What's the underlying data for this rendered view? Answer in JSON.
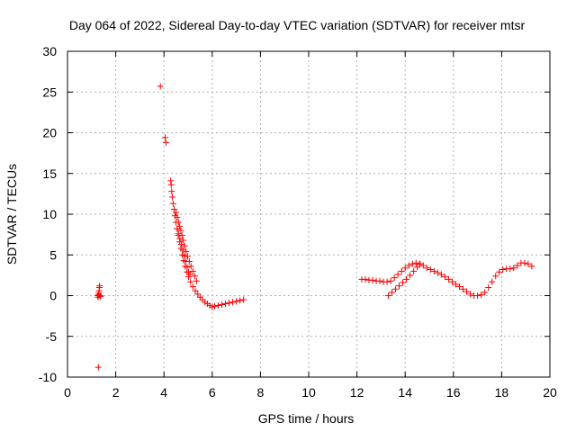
{
  "chart_data": {
    "type": "scatter",
    "title": "Day 064 of 2022, Sidereal Day-to-day VTEC variation (SDTVAR) for receiver mtsr",
    "xlabel": "GPS time / hours",
    "ylabel": "SDTVAR / TECUs",
    "xlim": [
      0,
      20
    ],
    "ylim": [
      -10,
      30
    ],
    "xticks": [
      0,
      2,
      4,
      6,
      8,
      10,
      12,
      14,
      16,
      18,
      20
    ],
    "yticks": [
      -10,
      -5,
      0,
      5,
      10,
      15,
      20,
      25,
      30
    ],
    "grid": true,
    "marker": "+",
    "color": "#ff0000",
    "series": [
      {
        "name": "SDTVAR",
        "segments": [
          [
            [
              1.25,
              0.0
            ],
            [
              1.27,
              -0.2
            ],
            [
              1.29,
              0.1
            ],
            [
              1.3,
              0.3
            ],
            [
              1.31,
              0.6
            ],
            [
              1.32,
              1.0
            ],
            [
              1.33,
              1.2
            ],
            [
              1.35,
              0.0
            ],
            [
              1.37,
              -0.1
            ]
          ],
          [
            [
              1.28,
              -8.8
            ]
          ],
          [
            [
              3.85,
              25.7
            ],
            [
              4.05,
              19.4
            ],
            [
              4.08,
              18.8
            ]
          ],
          [
            [
              4.28,
              14.1
            ],
            [
              4.3,
              13.6
            ],
            [
              4.32,
              12.8
            ],
            [
              4.35,
              12.1
            ],
            [
              4.38,
              11.3
            ],
            [
              4.42,
              10.6
            ],
            [
              4.46,
              9.8
            ],
            [
              4.5,
              9.0
            ],
            [
              4.55,
              8.2
            ],
            [
              4.6,
              7.4
            ],
            [
              4.65,
              6.6
            ],
            [
              4.7,
              5.8
            ],
            [
              4.76,
              5.0
            ],
            [
              4.82,
              4.3
            ],
            [
              4.88,
              3.6
            ],
            [
              4.95,
              2.9
            ],
            [
              5.02,
              2.3
            ],
            [
              5.1,
              1.7
            ],
            [
              5.2,
              1.1
            ],
            [
              5.3,
              0.6
            ],
            [
              5.4,
              0.2
            ],
            [
              5.5,
              -0.2
            ],
            [
              5.6,
              -0.5
            ],
            [
              5.7,
              -0.8
            ],
            [
              5.8,
              -1.0
            ],
            [
              5.9,
              -1.2
            ],
            [
              6.0,
              -1.4
            ],
            [
              6.1,
              -1.3
            ],
            [
              6.25,
              -1.2
            ],
            [
              6.4,
              -1.1
            ],
            [
              6.55,
              -1.0
            ],
            [
              6.7,
              -0.9
            ],
            [
              6.85,
              -0.8
            ],
            [
              7.0,
              -0.7
            ],
            [
              7.15,
              -0.6
            ],
            [
              7.3,
              -0.5
            ]
          ],
          [
            [
              4.5,
              10.2
            ],
            [
              4.55,
              9.6
            ],
            [
              4.6,
              9.0
            ],
            [
              4.65,
              8.5
            ],
            [
              4.7,
              8.0
            ],
            [
              4.75,
              7.4
            ],
            [
              4.8,
              6.8
            ],
            [
              4.86,
              6.1
            ],
            [
              4.92,
              5.4
            ],
            [
              4.98,
              4.8
            ],
            [
              5.05,
              4.2
            ],
            [
              5.12,
              3.6
            ],
            [
              5.2,
              3.0
            ],
            [
              5.28,
              2.4
            ],
            [
              5.35,
              1.8
            ]
          ],
          [
            [
              4.55,
              8.2
            ],
            [
              4.6,
              7.6
            ],
            [
              4.66,
              7.0
            ],
            [
              4.72,
              6.3
            ],
            [
              4.78,
              5.6
            ],
            [
              4.84,
              4.9
            ],
            [
              4.9,
              4.2
            ],
            [
              4.96,
              3.5
            ],
            [
              5.02,
              2.9
            ],
            [
              5.08,
              2.6
            ]
          ],
          [
            [
              12.2,
              2.0
            ],
            [
              12.35,
              2.0
            ],
            [
              12.5,
              1.9
            ],
            [
              12.65,
              1.9
            ],
            [
              12.8,
              1.8
            ],
            [
              12.95,
              1.8
            ],
            [
              13.1,
              1.7
            ],
            [
              13.25,
              1.7
            ],
            [
              13.4,
              1.8
            ],
            [
              13.55,
              2.2
            ],
            [
              13.7,
              2.6
            ],
            [
              13.85,
              3.0
            ],
            [
              14.0,
              3.4
            ],
            [
              14.15,
              3.7
            ],
            [
              14.3,
              3.9
            ],
            [
              14.45,
              4.0
            ],
            [
              14.6,
              3.9
            ],
            [
              14.75,
              3.7
            ],
            [
              14.9,
              3.4
            ],
            [
              15.05,
              3.2
            ],
            [
              15.2,
              3.0
            ],
            [
              15.35,
              2.8
            ],
            [
              15.5,
              2.6
            ],
            [
              15.65,
              2.3
            ],
            [
              15.8,
              2.0
            ],
            [
              15.95,
              1.7
            ],
            [
              16.1,
              1.4
            ],
            [
              16.25,
              1.1
            ],
            [
              16.4,
              0.8
            ],
            [
              16.55,
              0.5
            ],
            [
              16.7,
              0.2
            ],
            [
              16.85,
              0.0
            ],
            [
              17.0,
              0.0
            ],
            [
              17.15,
              0.1
            ],
            [
              17.3,
              0.4
            ],
            [
              17.45,
              1.0
            ],
            [
              17.6,
              1.7
            ],
            [
              17.75,
              2.4
            ],
            [
              17.9,
              2.9
            ],
            [
              18.05,
              3.2
            ],
            [
              18.2,
              3.3
            ],
            [
              18.35,
              3.3
            ],
            [
              18.5,
              3.4
            ],
            [
              18.65,
              3.7
            ],
            [
              18.8,
              4.0
            ],
            [
              18.95,
              4.0
            ],
            [
              19.1,
              3.9
            ],
            [
              19.25,
              3.6
            ]
          ],
          [
            [
              13.3,
              0.0
            ],
            [
              13.45,
              0.4
            ],
            [
              13.6,
              0.8
            ],
            [
              13.75,
              1.2
            ],
            [
              13.9,
              1.6
            ],
            [
              14.05,
              2.0
            ],
            [
              14.2,
              2.5
            ],
            [
              14.35,
              3.0
            ],
            [
              14.5,
              3.5
            ],
            [
              14.62,
              3.9
            ]
          ]
        ]
      }
    ]
  }
}
